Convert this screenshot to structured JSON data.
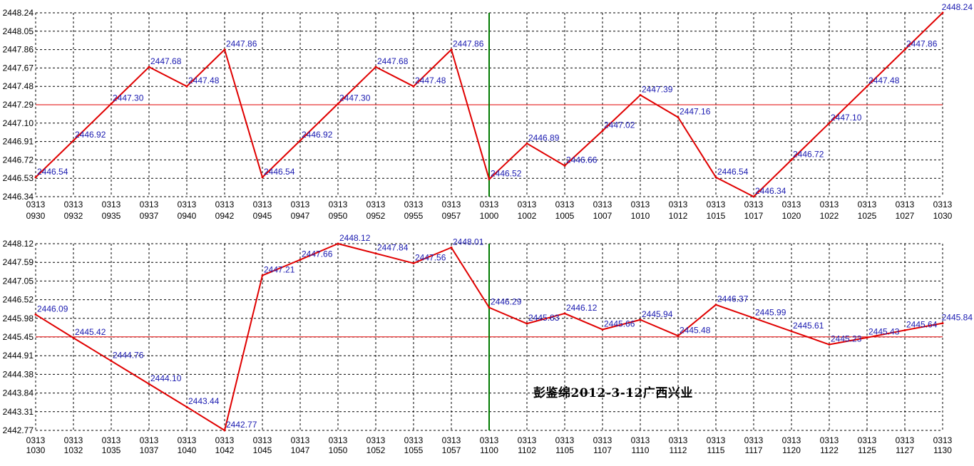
{
  "annotation": "彭鉴绵2012-3-12广西兴业",
  "colors": {
    "line": "#e00000",
    "reference_line": "#e00000",
    "vertical_marker": "#007a00",
    "label": "#1a1ab0",
    "grid": "#000000"
  },
  "chart_data": [
    {
      "type": "line",
      "grid": true,
      "grid_style": "dashed",
      "xlabel": "",
      "ylabel": "",
      "yticks": [
        "2448.24",
        "2448.05",
        "2447.86",
        "2447.67",
        "2447.48",
        "2447.29",
        "2447.10",
        "2446.91",
        "2446.72",
        "2446.53",
        "2446.34"
      ],
      "ylim": [
        2446.34,
        2448.24
      ],
      "reference_y": 2447.29,
      "vertical_marker_x": "1000",
      "x_ticks": [
        {
          "top": "0313",
          "bottom": "0930"
        },
        {
          "top": "0313",
          "bottom": "0932"
        },
        {
          "top": "0313",
          "bottom": "0935"
        },
        {
          "top": "0313",
          "bottom": "0937"
        },
        {
          "top": "0313",
          "bottom": "0940"
        },
        {
          "top": "0313",
          "bottom": "0942"
        },
        {
          "top": "0313",
          "bottom": "0945"
        },
        {
          "top": "0313",
          "bottom": "0947"
        },
        {
          "top": "0313",
          "bottom": "0950"
        },
        {
          "top": "0313",
          "bottom": "0952"
        },
        {
          "top": "0313",
          "bottom": "0955"
        },
        {
          "top": "0313",
          "bottom": "0957"
        },
        {
          "top": "0313",
          "bottom": "1000"
        },
        {
          "top": "0313",
          "bottom": "1002"
        },
        {
          "top": "0313",
          "bottom": "1005"
        },
        {
          "top": "0313",
          "bottom": "1007"
        },
        {
          "top": "0313",
          "bottom": "1010"
        },
        {
          "top": "0313",
          "bottom": "1012"
        },
        {
          "top": "0313",
          "bottom": "1015"
        },
        {
          "top": "0313",
          "bottom": "1017"
        },
        {
          "top": "0313",
          "bottom": "1020"
        },
        {
          "top": "0313",
          "bottom": "1022"
        },
        {
          "top": "0313",
          "bottom": "1025"
        },
        {
          "top": "0313",
          "bottom": "1027"
        },
        {
          "top": "0313",
          "bottom": "1030"
        }
      ],
      "series": [
        {
          "values": [
            2446.54,
            2446.92,
            2447.3,
            2447.68,
            2447.48,
            2447.86,
            2446.54,
            2446.92,
            2447.3,
            2447.68,
            2447.48,
            2447.86,
            2446.52,
            2446.89,
            2446.66,
            2447.02,
            2447.39,
            2447.16,
            2446.54,
            2446.34,
            2446.72,
            2447.1,
            2447.48,
            2447.86,
            2448.24
          ],
          "labels": [
            "2446.54",
            "2446.92",
            "2447.30",
            "2447.68",
            "2447.48",
            "2447.86",
            "2446.54",
            "2446.92",
            "2447.30",
            "2447.68",
            "2447.48",
            "2447.86",
            "2446.52",
            "2446.89",
            "2446.66",
            "2447.02",
            "2447.39",
            "2447.16",
            "2446.54",
            "2446.34",
            "2446.72",
            "2447.10",
            "2447.48",
            "2447.86",
            "2448.24"
          ]
        }
      ]
    },
    {
      "type": "line",
      "grid": true,
      "grid_style": "dashed",
      "xlabel": "",
      "ylabel": "",
      "yticks": [
        "2448.12",
        "2447.59",
        "2447.05",
        "2446.52",
        "2445.98",
        "2445.45",
        "2444.91",
        "2444.38",
        "2443.84",
        "2443.31",
        "2442.77"
      ],
      "ylim": [
        2442.77,
        2448.12
      ],
      "reference_y": 2445.45,
      "vertical_marker_x": "1100",
      "x_ticks": [
        {
          "top": "0313",
          "bottom": "1030"
        },
        {
          "top": "0313",
          "bottom": "1032"
        },
        {
          "top": "0313",
          "bottom": "1035"
        },
        {
          "top": "0313",
          "bottom": "1037"
        },
        {
          "top": "0313",
          "bottom": "1040"
        },
        {
          "top": "0313",
          "bottom": "1042"
        },
        {
          "top": "0313",
          "bottom": "1045"
        },
        {
          "top": "0313",
          "bottom": "1047"
        },
        {
          "top": "0313",
          "bottom": "1050"
        },
        {
          "top": "0313",
          "bottom": "1052"
        },
        {
          "top": "0313",
          "bottom": "1055"
        },
        {
          "top": "0313",
          "bottom": "1057"
        },
        {
          "top": "0313",
          "bottom": "1100"
        },
        {
          "top": "0313",
          "bottom": "1102"
        },
        {
          "top": "0313",
          "bottom": "1105"
        },
        {
          "top": "0313",
          "bottom": "1107"
        },
        {
          "top": "0313",
          "bottom": "1110"
        },
        {
          "top": "0313",
          "bottom": "1112"
        },
        {
          "top": "0313",
          "bottom": "1115"
        },
        {
          "top": "0313",
          "bottom": "1117"
        },
        {
          "top": "0313",
          "bottom": "1120"
        },
        {
          "top": "0313",
          "bottom": "1122"
        },
        {
          "top": "0313",
          "bottom": "1125"
        },
        {
          "top": "0313",
          "bottom": "1127"
        },
        {
          "top": "0313",
          "bottom": "1130"
        }
      ],
      "series": [
        {
          "values": [
            2446.09,
            2445.42,
            2444.76,
            2444.1,
            2443.44,
            2442.77,
            2447.21,
            2447.66,
            2448.12,
            2447.84,
            2447.56,
            2448.01,
            2446.29,
            2445.83,
            2446.12,
            2445.66,
            2445.94,
            2445.48,
            2446.37,
            2445.99,
            2445.61,
            2445.23,
            2445.43,
            2445.64,
            2445.84
          ],
          "labels": [
            "2446.09",
            "2445.42",
            "2444.76",
            "2444.10",
            "2443.44",
            "2442.77",
            "2447.21",
            "2447.66",
            "2448.12",
            "2447.84",
            "2447.56",
            "2448.01",
            "2446.29",
            "2445.83",
            "2446.12",
            "2445.66",
            "2445.94",
            "2445.48",
            "2446.37",
            "2445.99",
            "2445.61",
            "2445.23",
            "2445.43",
            "2445.64",
            "2445.84"
          ]
        }
      ]
    }
  ]
}
